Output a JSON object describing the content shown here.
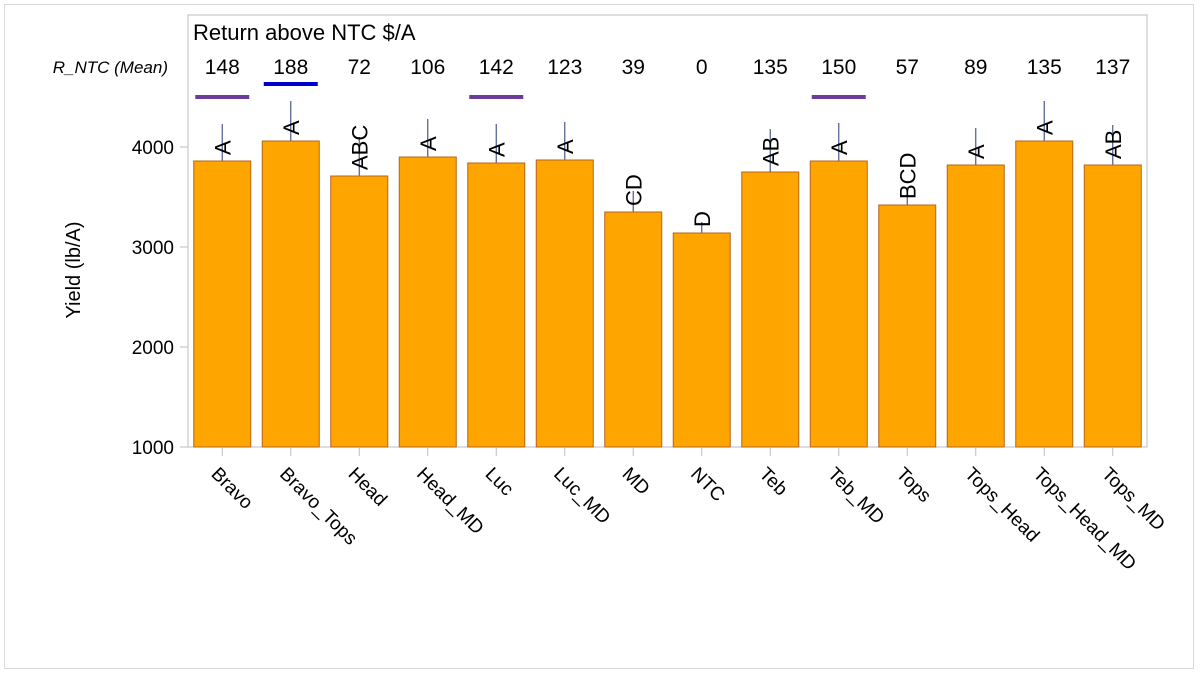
{
  "chart_data": {
    "type": "bar",
    "title": "Return above NTC $/A",
    "row_label": "R_NTC (Mean)",
    "xlabel": "",
    "ylabel": "Yield (lb/A)",
    "ylim": [
      1000,
      4470
    ],
    "yticks": [
      1000,
      2000,
      3000,
      4000
    ],
    "grid": false,
    "legend": null,
    "bar_color": "#FFA500",
    "bar_edge_color": "#B5651D",
    "errorbar_color": "#4A5A8A",
    "categories": [
      "Bravo",
      "Bravo_Tops",
      "Head",
      "Head_MD",
      "Luc",
      "Luc_MD",
      "MD",
      "NTC",
      "Teb",
      "Teb_MD",
      "Tops",
      "Tops_Head",
      "Tops_Head_MD",
      "Tops_MD"
    ],
    "values": [
      3860,
      4060,
      3710,
      3900,
      3840,
      3870,
      3350,
      3140,
      3750,
      3860,
      3420,
      3820,
      4060,
      3820
    ],
    "error_upper": [
      4230,
      4460,
      4100,
      4280,
      4230,
      4250,
      3560,
      3250,
      4180,
      4240,
      3600,
      4190,
      4460,
      4220
    ],
    "letter_groups": [
      "A",
      "A",
      "ABC",
      "A",
      "A",
      "A",
      "CD",
      "D",
      "AB",
      "A",
      "BCD",
      "A",
      "A",
      "AB"
    ],
    "r_ntc_mean": [
      "148",
      "188",
      "72",
      "106",
      "142",
      "123",
      "39",
      "0",
      "135",
      "150",
      "57",
      "89",
      "135",
      "137"
    ],
    "highlight_marks": [
      {
        "category": "Bravo",
        "color": "#6A3D9A"
      },
      {
        "category": "Bravo_Tops",
        "color": "#0000CC"
      },
      {
        "category": "Luc",
        "color": "#6A3D9A"
      },
      {
        "category": "Teb_MD",
        "color": "#6A3D9A"
      }
    ]
  }
}
